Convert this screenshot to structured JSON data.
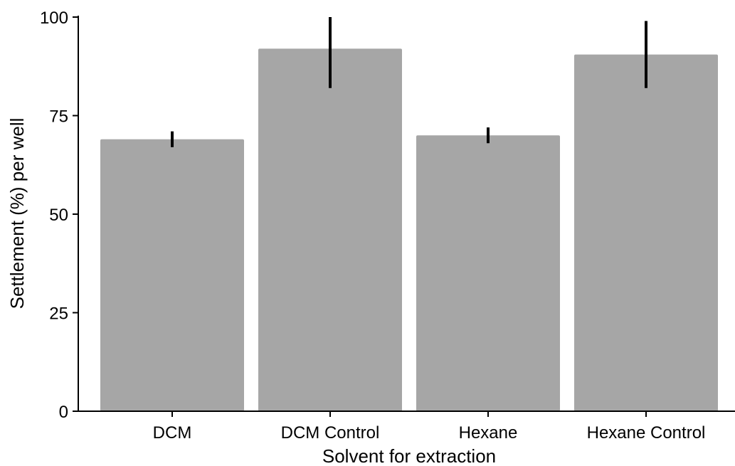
{
  "chart_data": {
    "type": "bar",
    "title": "",
    "xlabel": "Solvent for extraction",
    "ylabel": "Settlement (%) per well",
    "categories": [
      "DCM",
      "DCM Control",
      "Hexane",
      "Hexane Control"
    ],
    "values": [
      69,
      92,
      70,
      90.5
    ],
    "error_low": [
      67,
      82,
      68,
      82
    ],
    "error_high": [
      71,
      100,
      72,
      99
    ],
    "ylim": [
      0,
      100
    ],
    "yticks": [
      "0",
      "25",
      "50",
      "75",
      "100"
    ],
    "ytick_values": [
      0,
      25,
      50,
      75,
      100
    ],
    "grid": false,
    "legend": "none",
    "bar_color": "#a6a6a6",
    "error_color": "#000000"
  }
}
